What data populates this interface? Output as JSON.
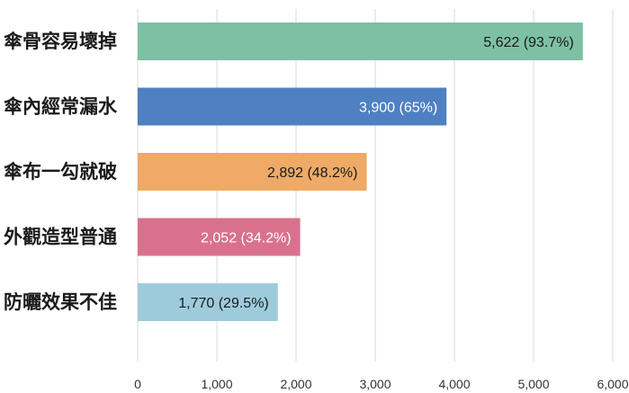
{
  "chart_data": {
    "type": "bar",
    "orientation": "horizontal",
    "categories": [
      "傘骨容易壞掉",
      "傘內經常漏水",
      "傘布一勾就破",
      "外觀造型普通",
      "防曬效果不佳"
    ],
    "values": [
      5622,
      3900,
      2892,
      2052,
      1770
    ],
    "data_labels": [
      "5,622 (93.7%)",
      "3,900 (65%)",
      "2,892 (48.2%)",
      "2,052 (34.2%)",
      "1,770 (29.5%)"
    ],
    "colors": [
      "#7dc1a4",
      "#4f80c2",
      "#eeaa66",
      "#d9718d",
      "#9ecbdc"
    ],
    "label_colors": [
      "#1a1a1a",
      "#ffffff",
      "#1a1a1a",
      "#ffffff",
      "#1a1a1a"
    ],
    "xlim": [
      0,
      6000
    ],
    "xticks": [
      0,
      1000,
      2000,
      3000,
      4000,
      5000,
      6000
    ],
    "xtick_labels": [
      "0",
      "1,000",
      "2,000",
      "3,000",
      "4,000",
      "5,000",
      "6,000"
    ],
    "grid": true,
    "title": "",
    "xlabel": "",
    "ylabel": ""
  }
}
